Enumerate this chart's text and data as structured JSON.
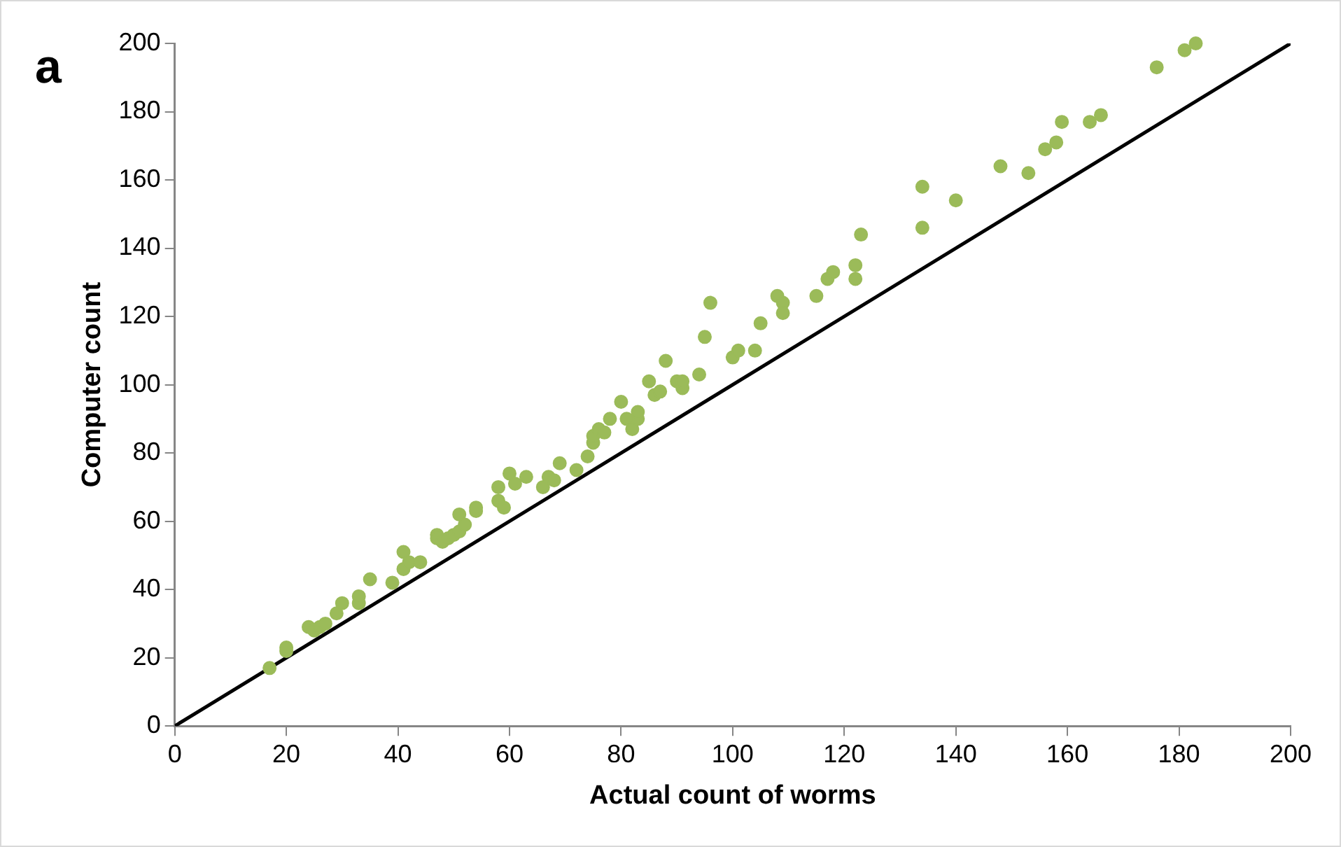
{
  "chart_data": {
    "type": "scatter",
    "xlabel": "Actual count of worms",
    "ylabel": "Computer count",
    "annotations": [
      "a"
    ],
    "xlim": [
      0,
      200
    ],
    "xticks": [
      0,
      20,
      40,
      60,
      80,
      100,
      120,
      140,
      160,
      180,
      200
    ],
    "ylim": [
      0,
      200
    ],
    "yticks": [
      0,
      20,
      40,
      60,
      80,
      100,
      120,
      140,
      160,
      180,
      200
    ],
    "grid": false,
    "legend": false,
    "marker": "circle",
    "series": [
      {
        "color": "#9bbb59",
        "x": [
          17,
          20,
          20,
          24,
          25,
          26,
          27,
          29,
          30,
          33,
          33,
          35,
          39,
          41,
          41,
          42,
          44,
          47,
          47,
          48,
          49,
          50,
          51,
          51,
          52,
          54,
          54,
          58,
          58,
          59,
          60,
          61,
          63,
          66,
          67,
          68,
          69,
          72,
          74,
          75,
          75,
          76,
          77,
          78,
          80,
          81,
          82,
          83,
          83,
          85,
          86,
          87,
          88,
          90,
          91,
          91,
          94,
          95,
          96,
          100,
          101,
          104,
          105,
          108,
          109,
          109,
          115,
          117,
          118,
          122,
          122,
          123,
          134,
          134,
          140,
          148,
          153,
          156,
          158,
          159,
          164,
          166,
          176,
          181,
          183
        ],
        "values": [
          17,
          22,
          23,
          29,
          28,
          29,
          30,
          33,
          36,
          36,
          38,
          43,
          42,
          46,
          51,
          48,
          48,
          56,
          55,
          54,
          55,
          56,
          57,
          62,
          59,
          63,
          64,
          66,
          70,
          64,
          74,
          71,
          73,
          70,
          73,
          72,
          77,
          75,
          79,
          83,
          85,
          87,
          86,
          90,
          95,
          90,
          87,
          90,
          92,
          101,
          97,
          98,
          107,
          101,
          99,
          101,
          103,
          114,
          124,
          108,
          110,
          110,
          118,
          126,
          124,
          121,
          126,
          131,
          133,
          131,
          135,
          144,
          146,
          158,
          154,
          164,
          162,
          169,
          171,
          177,
          177,
          179,
          193,
          198,
          200
        ]
      },
      {
        "type": "line",
        "color": "#000000",
        "x": [
          0,
          200
        ],
        "values": [
          0,
          200
        ],
        "marker": "none"
      }
    ]
  }
}
